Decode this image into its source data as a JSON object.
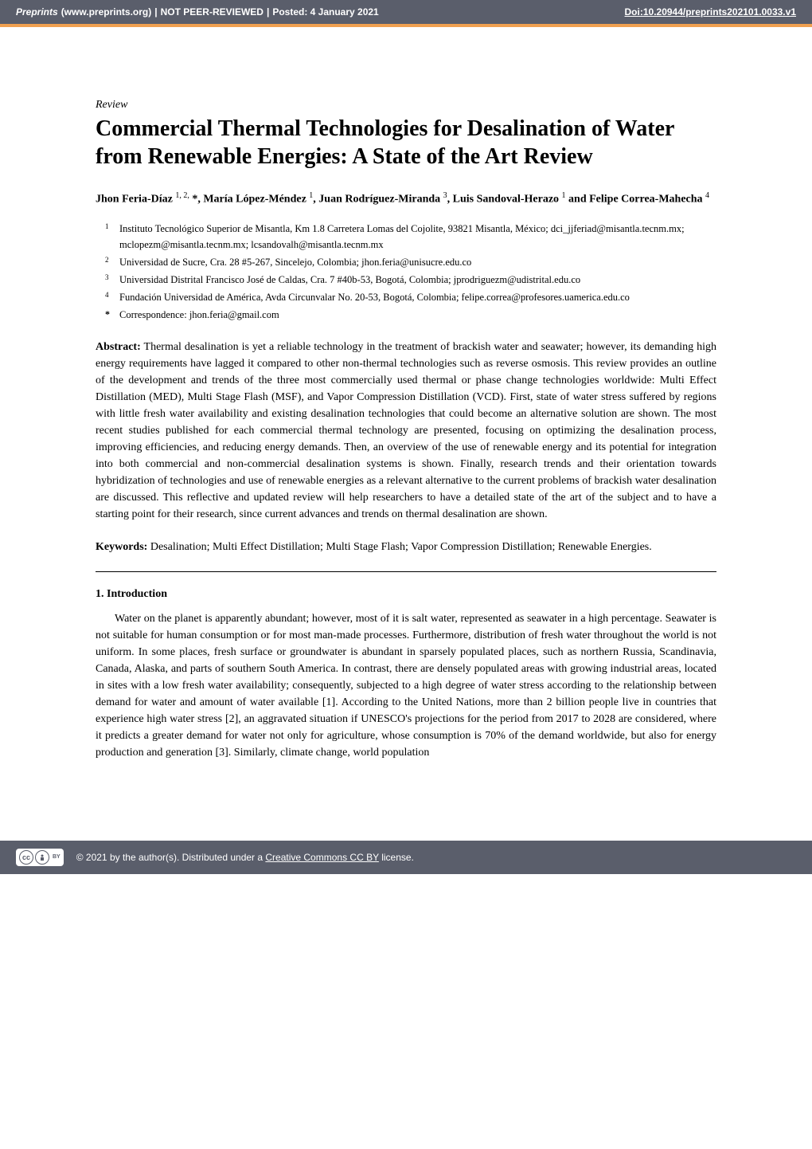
{
  "header": {
    "site": "Preprints",
    "url": "(www.preprints.org)",
    "separator": "  |  ",
    "status": "NOT PEER-REVIEWED",
    "posted": "Posted: 4 January 2021",
    "doi": "Doi:10.20944/preprints202101.0033.v1"
  },
  "article": {
    "type": "Review",
    "title": "Commercial Thermal Technologies for Desalination of Water from Renewable Energies: A State of the Art Review",
    "authors_html": "Jhon Feria-Díaz <sup>1, 2,</sup> *, María López-Méndez <sup>1</sup>, Juan Rodríguez-Miranda <sup>3</sup>, Luis Sandoval-Herazo <sup>1</sup> and Felipe Correa-Mahecha <sup>4</sup>",
    "affiliations": [
      {
        "num": "1",
        "text": "Instituto Tecnológico Superior de Misantla, Km 1.8 Carretera Lomas del Cojolite, 93821 Misantla, México; dci_jjferiad@misantla.tecnm.mx; mclopezm@misantla.tecnm.mx; lcsandovalh@misantla.tecnm.mx"
      },
      {
        "num": "2",
        "text": "Universidad de Sucre, Cra. 28 #5-267, Sincelejo, Colombia; jhon.feria@unisucre.edu.co"
      },
      {
        "num": "3",
        "text": "Universidad Distrital Francisco José de Caldas, Cra. 7 #40b-53, Bogotá, Colombia; jprodriguezm@udistrital.edu.co"
      },
      {
        "num": "4",
        "text": "Fundación Universidad de América, Avda Circunvalar No. 20-53, Bogotá, Colombia; felipe.correa@profesores.uamerica.edu.co"
      },
      {
        "num": "*",
        "text": "Correspondence: jhon.feria@gmail.com"
      }
    ],
    "abstract_label": "Abstract:",
    "abstract": " Thermal desalination is yet a reliable technology in the treatment of brackish water and seawater; however, its demanding high energy requirements have lagged it compared to other non-thermal technologies such as reverse osmosis. This review provides an outline of the development and trends of the three most commercially used thermal or phase change technologies worldwide: Multi Effect Distillation (MED), Multi Stage Flash (MSF), and Vapor Compression Distillation (VCD). First, state of water stress suffered by regions with little fresh water availability and existing desalination technologies that could become an alternative solution are shown. The most recent studies published for each commercial thermal technology are presented, focusing on optimizing the desalination process, improving efficiencies, and reducing energy demands. Then, an overview of the use of renewable energy and its potential for integration into both commercial and non-commercial desalination systems is shown. Finally, research trends and their orientation towards hybridization of technologies and use of renewable energies as a relevant alternative to the current problems of brackish water desalination are discussed. This reflective and updated review will help researchers to have a detailed state of the art of the subject and to have a starting point for their research, since current advances and trends on thermal desalination are shown.",
    "keywords_label": "Keywords:",
    "keywords": " Desalination; Multi Effect Distillation; Multi Stage Flash; Vapor Compression Distillation; Renewable Energies.",
    "section_title": "1. Introduction",
    "intro_text": "Water on the planet is apparently abundant; however, most of it is salt water, represented as seawater in a high percentage. Seawater is not suitable for human consumption or for most man-made processes. Furthermore, distribution of fresh water throughout the world is not uniform. In some places, fresh surface or groundwater is abundant in sparsely populated places, such as northern Russia, Scandinavia, Canada, Alaska, and parts of southern South America. In contrast, there are densely populated areas with growing industrial areas, located in sites with a low fresh water availability; consequently, subjected to a high degree of water stress according to the relationship between demand for water and amount of water available [1]. According to the United Nations, more than 2 billion people live in countries that experience high water stress [2], an aggravated situation if UNESCO's projections for the period from 2017 to 2028 are considered, where it predicts a greater demand for water not only for agriculture, whose consumption is 70% of the demand worldwide, but also for energy production and generation [3]. Similarly, climate change, world population"
  },
  "footer": {
    "copyright": "© 2021 by the author(s). Distributed under a ",
    "license_text": "Creative Commons CC BY",
    "license_suffix": " license."
  },
  "colors": {
    "banner_bg": "#5a5e6b",
    "accent": "#f0a050",
    "text": "#000000",
    "bg": "#ffffff"
  }
}
